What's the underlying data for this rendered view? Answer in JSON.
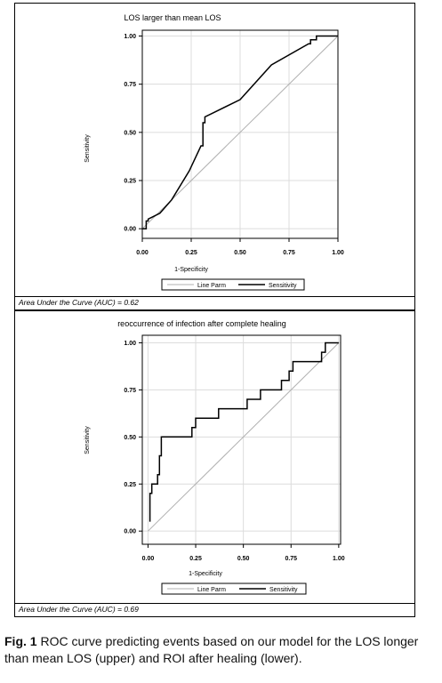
{
  "chart_data": [
    {
      "type": "line",
      "title": "LOS larger than mean LOS",
      "xlabel": "1-Specificity",
      "ylabel": "Sensitivity",
      "xlim": [
        0,
        1
      ],
      "ylim": [
        0,
        1
      ],
      "x_ticks": [
        "0.00",
        "0.25",
        "0.50",
        "0.75",
        "1.00"
      ],
      "y_ticks": [
        "0.00",
        "0.25",
        "0.50",
        "0.75",
        "1.00"
      ],
      "grid": true,
      "legend": [
        "Line Parm",
        "Sensitivity"
      ],
      "legend_position": "bottom",
      "series": [
        {
          "name": "Line Parm",
          "color": "#b0b0b0",
          "points": [
            [
              0,
              0
            ],
            [
              1,
              1
            ]
          ]
        },
        {
          "name": "Sensitivity",
          "color": "#000000",
          "points": [
            [
              0,
              0
            ],
            [
              0.02,
              0
            ],
            [
              0.02,
              0.04
            ],
            [
              0.03,
              0.04
            ],
            [
              0.03,
              0.05
            ],
            [
              0.05,
              0.06
            ],
            [
              0.09,
              0.08
            ],
            [
              0.15,
              0.15
            ],
            [
              0.24,
              0.3
            ],
            [
              0.3,
              0.43
            ],
            [
              0.31,
              0.43
            ],
            [
              0.31,
              0.55
            ],
            [
              0.32,
              0.55
            ],
            [
              0.32,
              0.58
            ],
            [
              0.5,
              0.67
            ],
            [
              0.66,
              0.85
            ],
            [
              0.85,
              0.96
            ],
            [
              0.86,
              0.96
            ],
            [
              0.86,
              0.98
            ],
            [
              0.89,
              0.98
            ],
            [
              0.89,
              1.0
            ],
            [
              1.0,
              1.0
            ]
          ]
        }
      ],
      "auc_text": "Area Under the Curve (AUC) = 0.62"
    },
    {
      "type": "line",
      "title": "reoccurrence of infection after complete healing",
      "xlabel": "1-Specificity",
      "ylabel": "Sensitivity",
      "xlim": [
        0,
        1
      ],
      "ylim": [
        0,
        1
      ],
      "x_ticks": [
        "0.00",
        "0.25",
        "0.50",
        "0.75",
        "1.00"
      ],
      "y_ticks": [
        "0.00",
        "0.25",
        "0.50",
        "0.75",
        "1.00"
      ],
      "grid": true,
      "legend": [
        "Line Parm",
        "Sensitivity"
      ],
      "legend_position": "bottom",
      "series": [
        {
          "name": "Line Parm",
          "color": "#b0b0b0",
          "points": [
            [
              0,
              0
            ],
            [
              1,
              1
            ]
          ]
        },
        {
          "name": "Sensitivity",
          "color": "#000000",
          "points": [
            [
              0.01,
              0.05
            ],
            [
              0.01,
              0.2
            ],
            [
              0.02,
              0.2
            ],
            [
              0.02,
              0.25
            ],
            [
              0.05,
              0.25
            ],
            [
              0.05,
              0.3
            ],
            [
              0.06,
              0.3
            ],
            [
              0.06,
              0.4
            ],
            [
              0.07,
              0.4
            ],
            [
              0.07,
              0.5
            ],
            [
              0.23,
              0.5
            ],
            [
              0.23,
              0.55
            ],
            [
              0.25,
              0.55
            ],
            [
              0.25,
              0.6
            ],
            [
              0.37,
              0.6
            ],
            [
              0.37,
              0.65
            ],
            [
              0.52,
              0.65
            ],
            [
              0.52,
              0.7
            ],
            [
              0.59,
              0.7
            ],
            [
              0.59,
              0.75
            ],
            [
              0.7,
              0.75
            ],
            [
              0.7,
              0.8
            ],
            [
              0.74,
              0.8
            ],
            [
              0.74,
              0.85
            ],
            [
              0.76,
              0.85
            ],
            [
              0.76,
              0.9
            ],
            [
              0.91,
              0.9
            ],
            [
              0.91,
              0.95
            ],
            [
              0.93,
              0.95
            ],
            [
              0.93,
              1.0
            ],
            [
              1.0,
              1.0
            ]
          ]
        }
      ],
      "auc_text": "Area Under the Curve (AUC) = 0.69"
    }
  ],
  "caption": {
    "label": "Fig. 1",
    "text": "ROC curve predicting events based on our model for the LOS longer than mean LOS (upper) and ROI after healing (lower)."
  }
}
